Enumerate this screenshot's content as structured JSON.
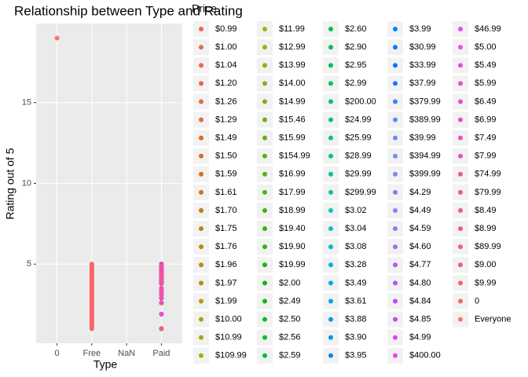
{
  "chart_data": {
    "type": "scatter",
    "title": "Relationship between Type and Rating",
    "x_label": "Type",
    "y_label": "Rating out of 5",
    "legend_title": "Price",
    "categories": [
      "0",
      "Free",
      "NaN",
      "Paid"
    ],
    "ylim": [
      0.1,
      19.9
    ],
    "yticks": [
      5,
      10,
      15
    ],
    "grid": true,
    "series": [
      {
        "name": "$0.99",
        "color": "hsl(5,80%,64%)",
        "x": [
          "Paid"
        ],
        "values": [
          4.5
        ]
      },
      {
        "name": "$1.00",
        "color": "hsl(8,78%,62%)",
        "x": [
          "Paid"
        ],
        "values": [
          4.2
        ]
      },
      {
        "name": "$1.04",
        "color": "hsl(11,76%,60%)",
        "x": [
          "Paid"
        ],
        "values": [
          3.8
        ]
      },
      {
        "name": "$1.20",
        "color": "hsl(14,74%,58%)",
        "x": [
          "Paid"
        ],
        "values": [
          4.7
        ]
      },
      {
        "name": "$1.26",
        "color": "hsl(17,72%,56%)",
        "x": [
          "Paid"
        ],
        "values": [
          3.5
        ]
      },
      {
        "name": "$1.29",
        "color": "hsl(20,72%,54%)",
        "x": [
          "Paid"
        ],
        "values": [
          4.0
        ]
      },
      {
        "name": "$1.49",
        "color": "hsl(23,75%,50%)",
        "x": [
          "Paid"
        ],
        "values": [
          2.6
        ]
      },
      {
        "name": "$1.50",
        "color": "hsl(26,78%,48%)",
        "x": [
          "Paid"
        ],
        "values": [
          4.9
        ]
      },
      {
        "name": "$1.59",
        "color": "hsl(29,80%,46%)",
        "x": [
          "Paid"
        ],
        "values": [
          4.3
        ]
      },
      {
        "name": "$1.61",
        "color": "hsl(32,82%,44%)",
        "x": [
          "Paid"
        ],
        "values": [
          3.1
        ]
      },
      {
        "name": "$1.70",
        "color": "hsl(35,85%,42%)",
        "x": [
          "Paid"
        ],
        "values": [
          1.0
        ]
      },
      {
        "name": "$1.75",
        "color": "hsl(38,85%,41%)",
        "x": [
          "Paid"
        ],
        "values": [
          4.4
        ]
      },
      {
        "name": "$1.76",
        "color": "hsl(41,85%,40%)",
        "x": [
          "Paid"
        ],
        "values": [
          5.0
        ]
      },
      {
        "name": "$1.96",
        "color": "hsl(44,85%,39%)",
        "x": [
          "Paid"
        ],
        "values": [
          3.9
        ]
      },
      {
        "name": "$1.97",
        "color": "hsl(47,85%,38%)",
        "x": [
          "Paid"
        ],
        "values": [
          4.1
        ]
      },
      {
        "name": "$1.99",
        "color": "hsl(50,85%,38%)",
        "x": [
          "Paid"
        ],
        "values": [
          2.9
        ]
      },
      {
        "name": "$10.00",
        "color": "hsl(53,85%,38%)",
        "x": [
          "Paid"
        ],
        "values": [
          4.6
        ]
      },
      {
        "name": "$10.99",
        "color": "hsl(56,85%,37%)",
        "x": [
          "Paid"
        ],
        "values": [
          3.3
        ]
      },
      {
        "name": "$109.99",
        "color": "hsl(59,85%,37%)",
        "x": [
          "Paid"
        ],
        "values": [
          4.8
        ]
      },
      {
        "name": "$11.99",
        "color": "hsl(62,85%,37%)",
        "x": [
          "Paid"
        ],
        "values": [
          1.9
        ]
      },
      {
        "name": "$12.99",
        "color": "hsl(66,85%,37%)",
        "x": [
          "Paid"
        ],
        "values": [
          4.5
        ]
      },
      {
        "name": "$13.99",
        "color": "hsl(70,85%,37%)",
        "x": [
          "Paid"
        ],
        "values": [
          4.2
        ]
      },
      {
        "name": "$14.00",
        "color": "hsl(74,85%,37%)",
        "x": [
          "Paid"
        ],
        "values": [
          3.8
        ]
      },
      {
        "name": "$14.99",
        "color": "hsl(78,85%,37%)",
        "x": [
          "Paid"
        ],
        "values": [
          4.7
        ]
      },
      {
        "name": "$15.46",
        "color": "hsl(82,85%,37%)",
        "x": [
          "Paid"
        ],
        "values": [
          3.5
        ]
      },
      {
        "name": "$15.99",
        "color": "hsl(86,85%,37%)",
        "x": [
          "Paid"
        ],
        "values": [
          4.0
        ]
      },
      {
        "name": "$154.99",
        "color": "hsl(90,85%,37%)",
        "x": [
          "Paid"
        ],
        "values": [
          2.6
        ]
      },
      {
        "name": "$16.99",
        "color": "hsl(94,85%,38%)",
        "x": [
          "Paid"
        ],
        "values": [
          4.9
        ]
      },
      {
        "name": "$17.99",
        "color": "hsl(98,85%,38%)",
        "x": [
          "Paid"
        ],
        "values": [
          4.3
        ]
      },
      {
        "name": "$18.99",
        "color": "hsl(102,85%,38%)",
        "x": [
          "Paid"
        ],
        "values": [
          3.1
        ]
      },
      {
        "name": "$19.40",
        "color": "hsl(106,85%,38%)",
        "x": [
          "Paid"
        ],
        "values": [
          1.0
        ]
      },
      {
        "name": "$19.90",
        "color": "hsl(110,85%,38%)",
        "x": [
          "Paid"
        ],
        "values": [
          4.4
        ]
      },
      {
        "name": "$19.99",
        "color": "hsl(114,85%,38%)",
        "x": [
          "Paid"
        ],
        "values": [
          5.0
        ]
      },
      {
        "name": "$2.00",
        "color": "hsl(118,85%,38%)",
        "x": [
          "Paid"
        ],
        "values": [
          3.9
        ]
      },
      {
        "name": "$2.49",
        "color": "hsl(122,90%,38%)",
        "x": [
          "Paid"
        ],
        "values": [
          4.1
        ]
      },
      {
        "name": "$2.50",
        "color": "hsl(126,95%,38%)",
        "x": [
          "Paid"
        ],
        "values": [
          2.9
        ]
      },
      {
        "name": "$2.56",
        "color": "hsl(130,100%,38%)",
        "x": [
          "Paid"
        ],
        "values": [
          4.6
        ]
      },
      {
        "name": "$2.59",
        "color": "hsl(134,100%,38%)",
        "x": [
          "Paid"
        ],
        "values": [
          3.3
        ]
      },
      {
        "name": "$2.60",
        "color": "hsl(140,100%,38%)",
        "x": [
          "Paid"
        ],
        "values": [
          4.8
        ]
      },
      {
        "name": "$2.90",
        "color": "hsl(143,100%,38%)",
        "x": [
          "Paid"
        ],
        "values": [
          1.9
        ]
      },
      {
        "name": "$2.95",
        "color": "hsl(146,100%,38%)",
        "x": [
          "Paid"
        ],
        "values": [
          4.5
        ]
      },
      {
        "name": "$2.99",
        "color": "hsl(150,100%,38%)",
        "x": [
          "Paid"
        ],
        "values": [
          4.2
        ]
      },
      {
        "name": "$200.00",
        "color": "hsl(154,100%,38%)",
        "x": [
          "Paid"
        ],
        "values": [
          3.8
        ]
      },
      {
        "name": "$24.99",
        "color": "hsl(158,100%,38%)",
        "x": [
          "Paid"
        ],
        "values": [
          4.7
        ]
      },
      {
        "name": "$25.99",
        "color": "hsl(162,100%,38%)",
        "x": [
          "Paid"
        ],
        "values": [
          3.5
        ]
      },
      {
        "name": "$28.99",
        "color": "hsl(166,100%,38%)",
        "x": [
          "Paid"
        ],
        "values": [
          4.0
        ]
      },
      {
        "name": "$29.99",
        "color": "hsl(170,100%,38%)",
        "x": [
          "Paid"
        ],
        "values": [
          2.6
        ]
      },
      {
        "name": "$299.99",
        "color": "hsl(174,100%,38%)",
        "x": [
          "Paid"
        ],
        "values": [
          4.9
        ]
      },
      {
        "name": "$3.02",
        "color": "hsl(178,100%,39%)",
        "x": [
          "Paid"
        ],
        "values": [
          4.3
        ]
      },
      {
        "name": "$3.04",
        "color": "hsl(182,100%,40%)",
        "x": [
          "Paid"
        ],
        "values": [
          3.1
        ]
      },
      {
        "name": "$3.08",
        "color": "hsl(186,100%,41%)",
        "x": [
          "Paid"
        ],
        "values": [
          1.0
        ]
      },
      {
        "name": "$3.28",
        "color": "hsl(190,100%,42%)",
        "x": [
          "Paid"
        ],
        "values": [
          4.4
        ]
      },
      {
        "name": "$3.49",
        "color": "hsl(193,100%,43%)",
        "x": [
          "Paid"
        ],
        "values": [
          5.0
        ]
      },
      {
        "name": "$3.61",
        "color": "hsl(196,100%,44%)",
        "x": [
          "Paid"
        ],
        "values": [
          3.9
        ]
      },
      {
        "name": "$3.88",
        "color": "hsl(199,100%,45%)",
        "x": [
          "Paid"
        ],
        "values": [
          4.1
        ]
      },
      {
        "name": "$3.90",
        "color": "hsl(202,100%,46%)",
        "x": [
          "Paid"
        ],
        "values": [
          2.9
        ]
      },
      {
        "name": "$3.95",
        "color": "hsl(205,100%,47%)",
        "x": [
          "Paid"
        ],
        "values": [
          4.6
        ]
      },
      {
        "name": "$3.99",
        "color": "hsl(208,100%,48%)",
        "x": [
          "Paid"
        ],
        "values": [
          3.3
        ]
      },
      {
        "name": "$30.99",
        "color": "hsl(211,100%,50%)",
        "x": [
          "Paid"
        ],
        "values": [
          4.8
        ]
      },
      {
        "name": "$33.99",
        "color": "hsl(214,100%,52%)",
        "x": [
          "Paid"
        ],
        "values": [
          1.9
        ]
      },
      {
        "name": "$37.99",
        "color": "hsl(217,100%,56%)",
        "x": [
          "Paid"
        ],
        "values": [
          4.5
        ]
      },
      {
        "name": "$379.99",
        "color": "hsl(220,100%,62%)",
        "x": [
          "Paid"
        ],
        "values": [
          4.2
        ]
      },
      {
        "name": "$389.99",
        "color": "hsl(223,85%,66%)",
        "x": [
          "Paid"
        ],
        "values": [
          3.8
        ]
      },
      {
        "name": "$39.99",
        "color": "hsl(226,80%,68%)",
        "x": [
          "Paid"
        ],
        "values": [
          4.7
        ]
      },
      {
        "name": "$394.99",
        "color": "hsl(229,78%,70%)",
        "x": [
          "Paid"
        ],
        "values": [
          3.5
        ]
      },
      {
        "name": "$399.99",
        "color": "hsl(232,78%,71%)",
        "x": [
          "Paid"
        ],
        "values": [
          4.0
        ]
      },
      {
        "name": "$4.29",
        "color": "hsl(240,78%,72%)",
        "x": [
          "Paid"
        ],
        "values": [
          2.6
        ]
      },
      {
        "name": "$4.49",
        "color": "hsl(250,80%,72%)",
        "x": [
          "Paid"
        ],
        "values": [
          4.9
        ]
      },
      {
        "name": "$4.59",
        "color": "hsl(258,82%,70%)",
        "x": [
          "Paid"
        ],
        "values": [
          4.3
        ]
      },
      {
        "name": "$4.60",
        "color": "hsl(266,84%,68%)",
        "x": [
          "Paid"
        ],
        "values": [
          3.1
        ]
      },
      {
        "name": "$4.77",
        "color": "hsl(272,86%,66%)",
        "x": [
          "Paid"
        ],
        "values": [
          1.0
        ]
      },
      {
        "name": "$4.80",
        "color": "hsl(278,88%,64%)",
        "x": [
          "Paid"
        ],
        "values": [
          4.4
        ]
      },
      {
        "name": "$4.84",
        "color": "hsl(282,90%,62%)",
        "x": [
          "Paid"
        ],
        "values": [
          5.0
        ]
      },
      {
        "name": "$4.85",
        "color": "hsl(286,90%,62%)",
        "x": [
          "Paid"
        ],
        "values": [
          3.9
        ]
      },
      {
        "name": "$4.99",
        "color": "hsl(290,90%,62%)",
        "x": [
          "Paid"
        ],
        "values": [
          4.1
        ]
      },
      {
        "name": "$400.00",
        "color": "hsl(294,90%,62%)",
        "x": [
          "Paid"
        ],
        "values": [
          2.9
        ]
      },
      {
        "name": "$46.99",
        "color": "hsl(298,90%,62%)",
        "x": [
          "Paid"
        ],
        "values": [
          4.6
        ]
      },
      {
        "name": "$5.00",
        "color": "hsl(302,90%,62%)",
        "x": [
          "Paid"
        ],
        "values": [
          3.3
        ]
      },
      {
        "name": "$5.49",
        "color": "hsl(306,90%,62%)",
        "x": [
          "Paid"
        ],
        "values": [
          4.8
        ]
      },
      {
        "name": "$5.99",
        "color": "hsl(310,90%,62%)",
        "x": [
          "Paid"
        ],
        "values": [
          1.9
        ]
      },
      {
        "name": "$6.49",
        "color": "hsl(314,90%,62%)",
        "x": [
          "Paid"
        ],
        "values": [
          4.5
        ]
      },
      {
        "name": "$6.99",
        "color": "hsl(318,90%,62%)",
        "x": [
          "Paid"
        ],
        "values": [
          4.2
        ]
      },
      {
        "name": "$7.49",
        "color": "hsl(322,90%,63%)",
        "x": [
          "Paid"
        ],
        "values": [
          3.8
        ]
      },
      {
        "name": "$7.99",
        "color": "hsl(326,90%,63%)",
        "x": [
          "Paid"
        ],
        "values": [
          4.7
        ]
      },
      {
        "name": "$74.99",
        "color": "hsl(330,90%,64%)",
        "x": [
          "Paid"
        ],
        "values": [
          3.5
        ]
      },
      {
        "name": "$79.99",
        "color": "hsl(334,90%,64%)",
        "x": [
          "Paid"
        ],
        "values": [
          4.0
        ]
      },
      {
        "name": "$8.49",
        "color": "hsl(338,90%,65%)",
        "x": [
          "Paid"
        ],
        "values": [
          2.6
        ]
      },
      {
        "name": "$8.99",
        "color": "hsl(342,90%,65%)",
        "x": [
          "Paid"
        ],
        "values": [
          4.9
        ]
      },
      {
        "name": "$89.99",
        "color": "hsl(346,90%,66%)",
        "x": [
          "Paid"
        ],
        "values": [
          4.3
        ]
      },
      {
        "name": "$9.00",
        "color": "hsl(350,90%,66%)",
        "x": [
          "Paid"
        ],
        "values": [
          3.1
        ]
      },
      {
        "name": "$9.99",
        "color": "hsl(354,90%,67%)",
        "x": [
          "Paid"
        ],
        "values": [
          1.0
        ]
      },
      {
        "name": "0",
        "color": "hsl(357,90%,68%)",
        "x": [
          "Free",
          "Free",
          "Free",
          "Free",
          "Free",
          "Free",
          "Free",
          "Free",
          "Free",
          "Free",
          "Free",
          "Free",
          "Free",
          "Free",
          "Free",
          "Free",
          "Free",
          "Free",
          "Free",
          "Free",
          "Free",
          "Free",
          "Free",
          "Free",
          "Free",
          "Free",
          "Free",
          "Free",
          "Free",
          "Free",
          "Free",
          "Free",
          "Free",
          "Free",
          "Free",
          "Free",
          "Free",
          "Free",
          "Free",
          "Free",
          "Free"
        ],
        "values": [
          1.0,
          1.1,
          1.2,
          1.3,
          1.4,
          1.5,
          1.6,
          1.7,
          1.8,
          1.9,
          2.0,
          2.1,
          2.2,
          2.3,
          2.4,
          2.5,
          2.6,
          2.7,
          2.8,
          2.9,
          3.0,
          3.1,
          3.2,
          3.3,
          3.4,
          3.5,
          3.6,
          3.7,
          3.8,
          3.9,
          4.0,
          4.1,
          4.2,
          4.3,
          4.4,
          4.5,
          4.6,
          4.7,
          4.8,
          4.9,
          5.0
        ]
      },
      {
        "name": "Everyone",
        "color": "hsl(3,90%,70%)",
        "x": [
          "0"
        ],
        "values": [
          19
        ]
      }
    ]
  }
}
